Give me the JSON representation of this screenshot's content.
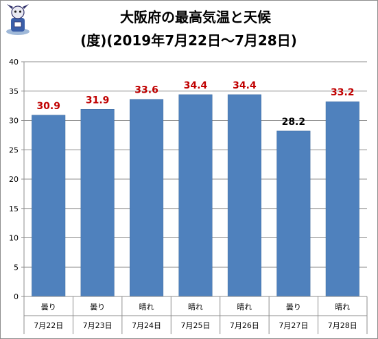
{
  "chart_data": {
    "type": "bar",
    "title": "大阪府の最高気温と天候",
    "subtitle": "(度)(2019年7月22日～7月28日)",
    "categories": [
      "7月22日",
      "7月23日",
      "7月24日",
      "7月25日",
      "7月26日",
      "7月27日",
      "7月28日"
    ],
    "weather": [
      "曇り",
      "曇り",
      "晴れ",
      "晴れ",
      "晴れ",
      "曇り",
      "晴れ"
    ],
    "values": [
      30.9,
      31.9,
      33.6,
      34.4,
      34.4,
      28.2,
      33.2
    ],
    "value_labels": [
      "30.9",
      "31.9",
      "33.6",
      "34.4",
      "34.4",
      "28.2",
      "33.2"
    ],
    "label_colors": [
      "#c00000",
      "#c00000",
      "#c00000",
      "#c00000",
      "#c00000",
      "#000000",
      "#c00000"
    ],
    "ylim": [
      0,
      40
    ],
    "yticks": [
      0,
      5,
      10,
      15,
      20,
      25,
      30,
      35,
      40
    ],
    "grid": true,
    "bar_color": "#4f81bd",
    "xlabel": "",
    "ylabel": ""
  },
  "icons": {
    "mascot": "mascot-logo-icon"
  }
}
